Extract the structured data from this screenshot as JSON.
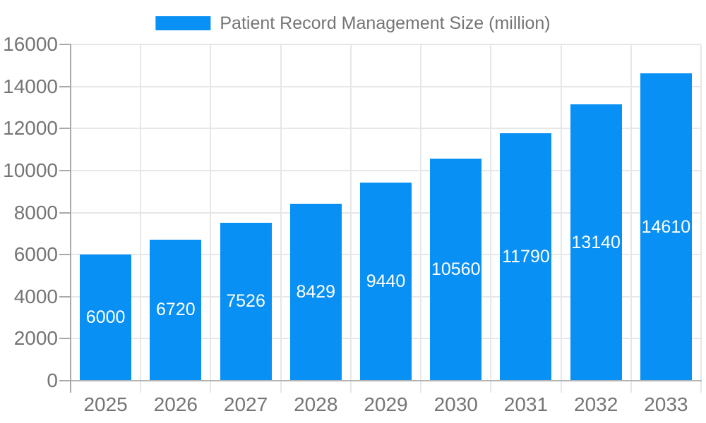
{
  "chart_data": {
    "type": "bar",
    "title": "Patient Record Management Size (million)",
    "categories": [
      "2025",
      "2026",
      "2027",
      "2028",
      "2029",
      "2030",
      "2031",
      "2032",
      "2033"
    ],
    "values": [
      6000,
      6720,
      7526,
      8429,
      9440,
      10560,
      11790,
      13140,
      14610
    ],
    "series_name": "Patient Record Management Size (million)",
    "xlabel": "",
    "ylabel": "",
    "ylim": [
      0,
      16000
    ],
    "y_tick_step": 2000,
    "y_ticks": [
      0,
      2000,
      4000,
      6000,
      8000,
      10000,
      12000,
      14000,
      16000
    ],
    "grid": "on",
    "legend_position": "top-center",
    "value_labels": "inside-center-white",
    "colors": {
      "bar": "#0990f5",
      "bar_value_text": "#ffffff",
      "axis_text": "#757575",
      "legend_text": "#757575",
      "grid_line": "#e7e7e7",
      "axis_line": "#a9a9a9",
      "background": "#ffffff"
    }
  }
}
